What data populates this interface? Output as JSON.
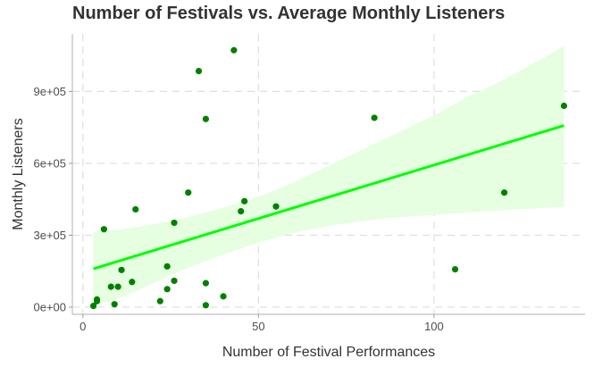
{
  "chart_data": {
    "type": "scatter",
    "title": "Number of Festivals vs. Average Monthly Listeners",
    "xlabel": "Number of Festival Performances",
    "ylabel": "Monthly Listeners",
    "xlim": [
      -3,
      143
    ],
    "ylim": [
      -30000,
      1140000
    ],
    "x_ticks": [
      0,
      50,
      100
    ],
    "x_tick_labels": [
      "0",
      "50",
      "100"
    ],
    "y_ticks": [
      0,
      300000,
      600000,
      900000
    ],
    "y_tick_labels": [
      "0e+00",
      "3e+05",
      "6e+05",
      "9e+05"
    ],
    "grid": true,
    "legend": "none",
    "colors": {
      "points": "#008000",
      "trend": "#00ff00",
      "band": "#e5ffe0",
      "grid": "#dedede",
      "axis": "#bfbfbf"
    },
    "points": [
      {
        "x": 3,
        "y": 5000
      },
      {
        "x": 4,
        "y": 25000
      },
      {
        "x": 4,
        "y": 32000
      },
      {
        "x": 6,
        "y": 325000
      },
      {
        "x": 8,
        "y": 85000
      },
      {
        "x": 9,
        "y": 12000
      },
      {
        "x": 10,
        "y": 85000
      },
      {
        "x": 11,
        "y": 155000
      },
      {
        "x": 14,
        "y": 105000
      },
      {
        "x": 15,
        "y": 408000
      },
      {
        "x": 22,
        "y": 25000
      },
      {
        "x": 24,
        "y": 75000
      },
      {
        "x": 24,
        "y": 170000
      },
      {
        "x": 26,
        "y": 110000
      },
      {
        "x": 26,
        "y": 352000
      },
      {
        "x": 30,
        "y": 478000
      },
      {
        "x": 33,
        "y": 985000
      },
      {
        "x": 35,
        "y": 8000
      },
      {
        "x": 35,
        "y": 100000
      },
      {
        "x": 35,
        "y": 785000
      },
      {
        "x": 40,
        "y": 45000
      },
      {
        "x": 43,
        "y": 1072000
      },
      {
        "x": 45,
        "y": 400000
      },
      {
        "x": 46,
        "y": 442000
      },
      {
        "x": 55,
        "y": 420000
      },
      {
        "x": 83,
        "y": 790000
      },
      {
        "x": 106,
        "y": 158000
      },
      {
        "x": 120,
        "y": 478000
      },
      {
        "x": 137,
        "y": 840000
      }
    ],
    "trend_line": {
      "x": [
        3,
        137
      ],
      "y": [
        160000,
        758000
      ]
    },
    "confidence_band": {
      "x": [
        3,
        10,
        20,
        30,
        40,
        50,
        60,
        70,
        80,
        90,
        100,
        110,
        120,
        130,
        137
      ],
      "upper": [
        313000,
        322000,
        345000,
        375000,
        415000,
        460000,
        520000,
        590000,
        660000,
        730000,
        800000,
        880000,
        950000,
        1030000,
        1090000
      ],
      "lower": [
        5000,
        35000,
        100000,
        165000,
        220000,
        270000,
        310000,
        340000,
        360000,
        375000,
        385000,
        395000,
        405000,
        413000,
        420000
      ]
    }
  }
}
